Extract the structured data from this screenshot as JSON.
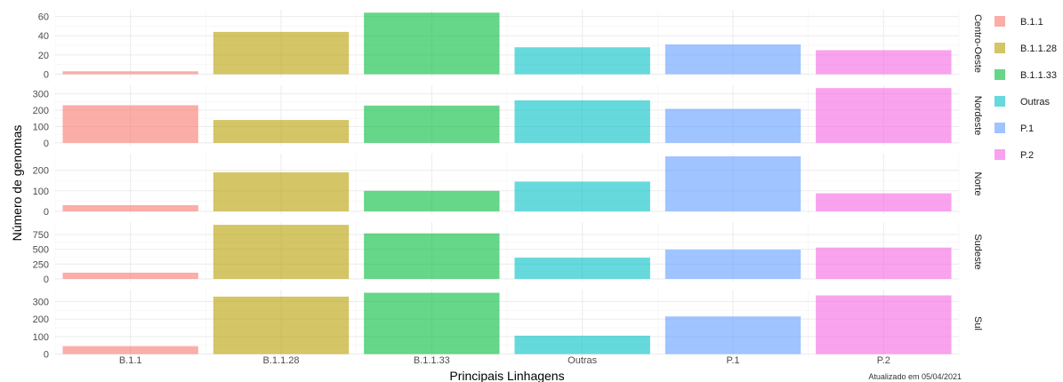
{
  "chart_data": {
    "type": "bar",
    "facet": "rows",
    "xlabel": "Principais Linhagens",
    "ylabel": "Número de genomas",
    "caption": "Atualizado em 05/04/2021",
    "categories": [
      "B.1.1",
      "B.1.1.28",
      "B.1.1.33",
      "Outras",
      "P.1",
      "P.2"
    ],
    "colors": [
      "#F8766D",
      "#B79F00",
      "#00BA38",
      "#00BFC4",
      "#619CFF",
      "#F564E3"
    ],
    "bar_opacity": 0.6,
    "legend": {
      "position": "right",
      "entries": [
        "B.1.1",
        "B.1.1.28",
        "B.1.1.33",
        "Outras",
        "P.1",
        "P.2"
      ]
    },
    "facets": [
      {
        "name": "Centro-Oeste",
        "values": [
          3,
          44,
          64,
          28,
          31,
          25
        ],
        "yticks": [
          0,
          20,
          40,
          60
        ],
        "ylim": [
          -3.2,
          67
        ]
      },
      {
        "name": "Nordeste",
        "values": [
          230,
          140,
          228,
          260,
          208,
          335
        ],
        "yticks": [
          0,
          100,
          200,
          300
        ],
        "ylim": [
          -17,
          352
        ]
      },
      {
        "name": "Norte",
        "values": [
          30,
          190,
          100,
          145,
          268,
          88
        ],
        "yticks": [
          0,
          100,
          200
        ],
        "ylim": [
          -13.4,
          281
        ]
      },
      {
        "name": "Sudeste",
        "values": [
          105,
          915,
          770,
          360,
          495,
          530
        ],
        "yticks": [
          0,
          250,
          500,
          750
        ],
        "ylim": [
          -46,
          961
        ]
      },
      {
        "name": "Sul",
        "values": [
          45,
          328,
          350,
          105,
          215,
          335
        ],
        "yticks": [
          0,
          100,
          200,
          300
        ],
        "ylim": [
          -17.5,
          368
        ]
      }
    ]
  }
}
